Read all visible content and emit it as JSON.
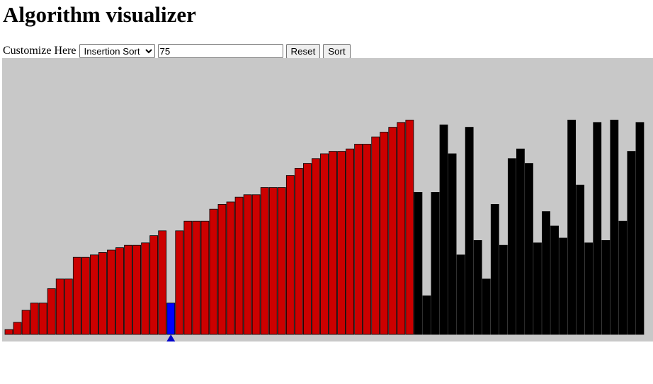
{
  "page": {
    "title": "Algorithm visualizer"
  },
  "controls": {
    "label": "Customize Here",
    "algorithm_selected": "Insertion Sort",
    "size_value": "75",
    "reset_label": "Reset",
    "sort_label": "Sort"
  },
  "colors": {
    "background": "#c8c8c8",
    "sorted": "#cc0000",
    "unsorted": "#000000",
    "current": "#0000ff",
    "pointer": "#0000cc"
  },
  "visualizer": {
    "max_value": 100,
    "active_index": 19,
    "sorted_count": 48,
    "pointer_index": 19,
    "values": [
      2,
      5,
      10,
      13,
      13,
      19,
      23,
      23,
      32,
      32,
      33,
      34,
      35,
      36,
      37,
      37,
      38,
      41,
      43,
      13,
      43,
      47,
      47,
      47,
      52,
      54,
      55,
      57,
      58,
      58,
      61,
      61,
      61,
      66,
      69,
      71,
      73,
      75,
      76,
      76,
      77,
      79,
      79,
      82,
      84,
      86,
      88,
      89,
      59,
      16,
      59,
      87,
      75,
      33,
      86,
      39,
      23,
      54,
      37,
      73,
      77,
      71,
      38,
      51,
      45,
      40,
      89,
      62,
      38,
      88,
      39,
      89,
      47,
      76,
      88
    ]
  }
}
